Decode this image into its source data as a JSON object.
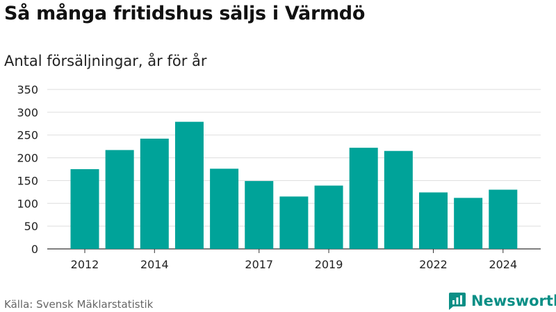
{
  "title": "Så många fritidshus säljs i Värmdö",
  "subtitle": "Antal försäljningar, år för år",
  "source": "Källa: Svensk Mäklarstatistik",
  "brand": "Newsworthy",
  "colors": {
    "bar": "#00a399",
    "grid": "#dddddd",
    "brand": "#0a8f86"
  },
  "chart_data": {
    "type": "bar",
    "categories": [
      "2012",
      "2013",
      "2014",
      "2015",
      "2016",
      "2017",
      "2018",
      "2019",
      "2020",
      "2021",
      "2022",
      "2023",
      "2024"
    ],
    "values": [
      175,
      217,
      242,
      279,
      176,
      149,
      115,
      139,
      222,
      215,
      124,
      112,
      130
    ],
    "x_tick_labels": [
      "2012",
      "",
      "2014",
      "",
      "",
      "2017",
      "",
      "2019",
      "",
      "",
      "2022",
      "",
      "2024"
    ],
    "ylim": [
      0,
      350
    ],
    "yticks": [
      0,
      50,
      100,
      150,
      200,
      250,
      300,
      350
    ],
    "grid": true,
    "legend": "none"
  }
}
